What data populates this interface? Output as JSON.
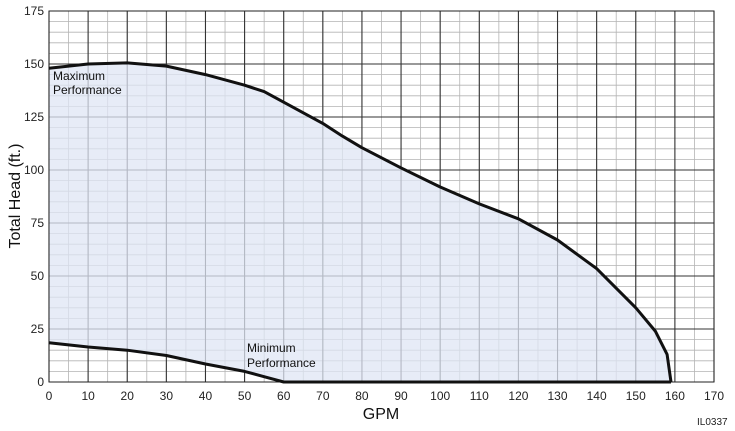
{
  "chart_data": {
    "type": "area",
    "xlabel": "GPM",
    "ylabel": "Total Head (ft.)",
    "xlim": [
      0,
      170
    ],
    "ylim": [
      0,
      175
    ],
    "x_ticks": [
      0,
      10,
      20,
      30,
      40,
      50,
      60,
      70,
      80,
      90,
      100,
      110,
      120,
      130,
      140,
      150,
      160,
      170
    ],
    "y_ticks": [
      0,
      25,
      50,
      75,
      100,
      125,
      150,
      175
    ],
    "x_minor_step": 5,
    "y_minor_step": 5,
    "grid": true,
    "fill_color": "#dfe6f4",
    "line_color": "#111111",
    "series": [
      {
        "name": "Maximum Performance",
        "label_lines": [
          "Maximum",
          "Performance"
        ],
        "points": [
          [
            0,
            148
          ],
          [
            10,
            150
          ],
          [
            20,
            150.5
          ],
          [
            30,
            149
          ],
          [
            40,
            145
          ],
          [
            50,
            140
          ],
          [
            55,
            137
          ],
          [
            60,
            132
          ],
          [
            70,
            122
          ],
          [
            75,
            116
          ],
          [
            80,
            110.5
          ],
          [
            90,
            101
          ],
          [
            100,
            92
          ],
          [
            110,
            84
          ],
          [
            120,
            77
          ],
          [
            130,
            67
          ],
          [
            140,
            53.5
          ],
          [
            150,
            35
          ],
          [
            155,
            24
          ],
          [
            158,
            13
          ],
          [
            159,
            0
          ]
        ]
      },
      {
        "name": "Minimum Performance",
        "label_lines": [
          "Minimum",
          "Performance"
        ],
        "points": [
          [
            0,
            18.5
          ],
          [
            10,
            16.5
          ],
          [
            20,
            15
          ],
          [
            30,
            12.5
          ],
          [
            40,
            8.5
          ],
          [
            50,
            5
          ],
          [
            55,
            2.5
          ],
          [
            60,
            0
          ],
          [
            159,
            0
          ]
        ]
      }
    ],
    "figure_id": "IL0337"
  }
}
